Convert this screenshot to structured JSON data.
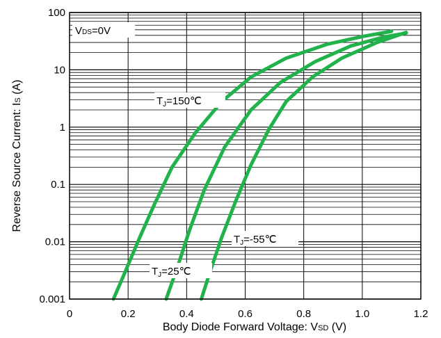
{
  "chart_data": {
    "type": "line",
    "xlabel": "Body Diode Forward Voltage: V",
    "xlabel_sub": "SD",
    "xlabel_unit": " (V)",
    "ylabel": "Reverse Source Current: I",
    "ylabel_sub": "S",
    "ylabel_unit": " (A)",
    "x_scale": "linear",
    "y_scale": "log",
    "xlim": [
      0,
      1.2
    ],
    "ylim": [
      0.001,
      100
    ],
    "x_ticks": [
      0,
      0.2,
      0.4,
      0.6,
      0.8,
      1.0,
      1.2
    ],
    "x_tick_labels": [
      "0",
      "0.2",
      "0.4",
      "0.6",
      "0.8",
      "1.0",
      "1.2"
    ],
    "y_ticks": [
      0.001,
      0.01,
      0.1,
      1,
      10,
      100
    ],
    "y_tick_labels": [
      "0.001",
      "0.01",
      "0.1",
      "1",
      "10",
      "100"
    ],
    "grid": true,
    "condition": {
      "main": "V",
      "sub": "DS",
      "rest": "=0V"
    },
    "line_color": "#22b24c",
    "series": [
      {
        "name": "TJ=150℃",
        "label": {
          "main": "T",
          "sub": "J",
          "rest": "=150℃"
        },
        "points": [
          [
            0.15,
            0.001
          ],
          [
            0.19,
            0.003
          ],
          [
            0.24,
            0.012
          ],
          [
            0.29,
            0.045
          ],
          [
            0.35,
            0.2
          ],
          [
            0.43,
            0.8
          ],
          [
            0.52,
            2.8
          ],
          [
            0.62,
            7.5
          ],
          [
            0.74,
            16
          ],
          [
            0.88,
            28
          ],
          [
            1.0,
            38
          ],
          [
            1.1,
            47
          ]
        ]
      },
      {
        "name": "TJ=25℃",
        "label": {
          "main": "T",
          "sub": "J",
          "rest": "=25℃"
        },
        "points": [
          [
            0.33,
            0.001
          ],
          [
            0.37,
            0.0038
          ],
          [
            0.41,
            0.016
          ],
          [
            0.46,
            0.08
          ],
          [
            0.53,
            0.45
          ],
          [
            0.62,
            2.0
          ],
          [
            0.72,
            6.0
          ],
          [
            0.84,
            14
          ],
          [
            0.96,
            26
          ],
          [
            1.07,
            37
          ],
          [
            1.15,
            44
          ]
        ]
      },
      {
        "name": "TJ=-55℃",
        "label": {
          "main": "T",
          "sub": "J",
          "rest": "=-55℃"
        },
        "points": [
          [
            0.45,
            0.001
          ],
          [
            0.48,
            0.003
          ],
          [
            0.52,
            0.012
          ],
          [
            0.57,
            0.055
          ],
          [
            0.62,
            0.22
          ],
          [
            0.68,
            0.9
          ],
          [
            0.74,
            2.8
          ],
          [
            0.83,
            7.5
          ],
          [
            0.93,
            16
          ],
          [
            1.05,
            30
          ],
          [
            1.15,
            45
          ]
        ]
      }
    ]
  }
}
